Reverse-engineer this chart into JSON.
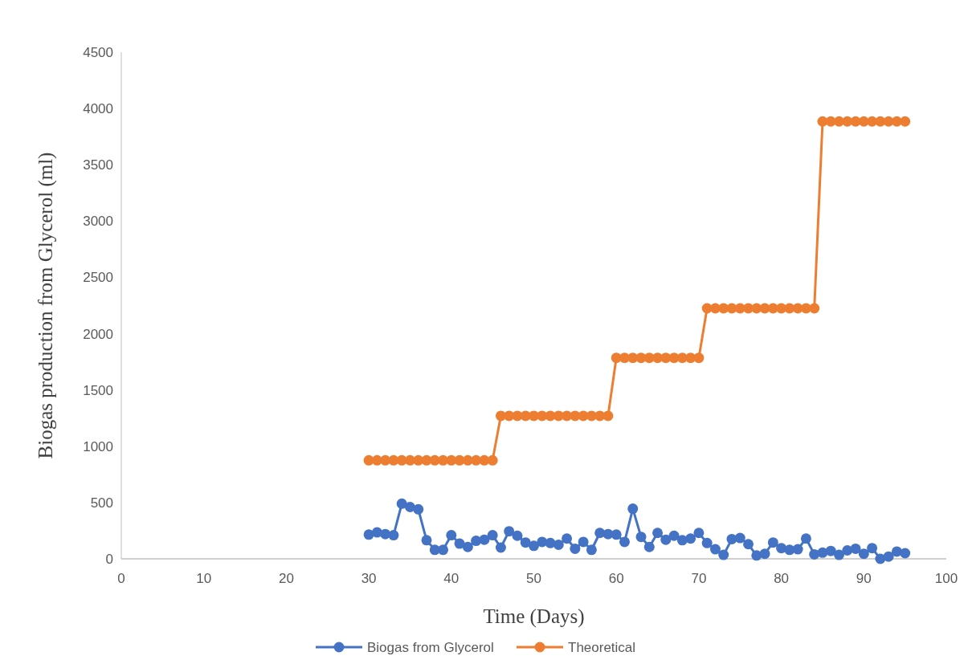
{
  "chart_data": {
    "type": "line",
    "xlabel": "Time (Days)",
    "ylabel": "Biogas production from Glycerol (ml)",
    "xlim": [
      0,
      100
    ],
    "xticks": [
      0,
      10,
      20,
      30,
      40,
      50,
      60,
      70,
      80,
      90,
      100
    ],
    "ylim": [
      0,
      4500
    ],
    "yticks": [
      0,
      500,
      1000,
      1500,
      2000,
      2500,
      3000,
      3500,
      4000,
      4500
    ],
    "grid": false,
    "legend": "bottom",
    "marker": "circle",
    "line_style": "solid",
    "x": [
      30,
      31,
      32,
      33,
      34,
      35,
      36,
      37,
      38,
      39,
      40,
      41,
      42,
      43,
      44,
      45,
      46,
      47,
      48,
      49,
      50,
      51,
      52,
      53,
      54,
      55,
      56,
      57,
      58,
      59,
      60,
      61,
      62,
      63,
      64,
      65,
      66,
      67,
      68,
      69,
      70,
      71,
      72,
      73,
      74,
      75,
      76,
      77,
      78,
      79,
      80,
      81,
      82,
      83,
      84,
      85,
      86,
      87,
      88,
      89,
      90,
      91,
      92,
      93,
      94,
      95
    ],
    "series": [
      {
        "name": "Biogas from Glycerol",
        "color": "#4472c4",
        "values": [
          215,
          235,
          220,
          210,
          490,
          460,
          440,
          165,
          80,
          80,
          210,
          135,
          105,
          160,
          170,
          210,
          100,
          245,
          205,
          145,
          115,
          150,
          140,
          125,
          180,
          90,
          150,
          80,
          230,
          220,
          215,
          150,
          445,
          195,
          105,
          230,
          170,
          205,
          165,
          180,
          230,
          140,
          85,
          35,
          175,
          185,
          130,
          30,
          45,
          145,
          95,
          80,
          85,
          180,
          40,
          55,
          70,
          35,
          75,
          90,
          45,
          95,
          0,
          20,
          65,
          50
        ]
      },
      {
        "name": "Theoretical",
        "color": "#ed7d31",
        "values": [
          875,
          875,
          875,
          875,
          875,
          875,
          875,
          875,
          875,
          875,
          875,
          875,
          875,
          875,
          875,
          875,
          1270,
          1270,
          1270,
          1270,
          1270,
          1270,
          1270,
          1270,
          1270,
          1270,
          1270,
          1270,
          1270,
          1270,
          1785,
          1785,
          1785,
          1785,
          1785,
          1785,
          1785,
          1785,
          1785,
          1785,
          1785,
          2225,
          2225,
          2225,
          2225,
          2225,
          2225,
          2225,
          2225,
          2225,
          2225,
          2225,
          2225,
          2225,
          2225,
          3885,
          3885,
          3885,
          3885,
          3885,
          3885,
          3885,
          3885,
          3885,
          3885,
          3885
        ]
      }
    ]
  }
}
